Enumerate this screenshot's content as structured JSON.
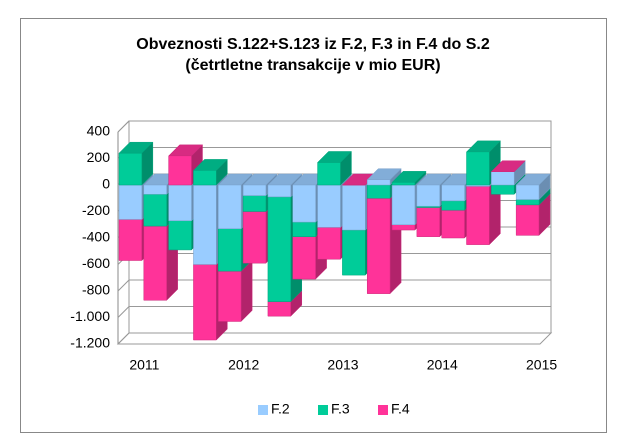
{
  "chart_data": {
    "type": "bar3d_stacked",
    "title": "Obveznosti S.122+S.123 iz F.2, F.3 in F.4 do S.2",
    "subtitle": "(četrtletne transakcije v mio EUR)",
    "categories": [
      "2011",
      null,
      null,
      null,
      "2012",
      null,
      null,
      null,
      "2013",
      null,
      null,
      null,
      "2014",
      null,
      null,
      null,
      "2015"
    ],
    "series": [
      {
        "name": "F.2",
        "color": "#99ccff",
        "values": [
          -260,
          -70,
          -270,
          -600,
          -330,
          -80,
          -90,
          -280,
          -320,
          -340,
          40,
          -300,
          -160,
          -120,
          -10,
          100,
          -110
        ]
      },
      {
        "name": "F.3",
        "color": "#00cc99",
        "values": [
          240,
          -240,
          -220,
          110,
          -320,
          -120,
          -790,
          -110,
          170,
          -340,
          -100,
          20,
          -10,
          -70,
          250,
          -70,
          -40
        ]
      },
      {
        "name": "F.4",
        "color": "#ff3399",
        "values": [
          -310,
          -560,
          220,
          -570,
          -380,
          -390,
          -110,
          -320,
          -240,
          0,
          -720,
          -40,
          -220,
          -210,
          -440,
          0,
          -230
        ]
      }
    ],
    "ylim": [
      -1200,
      400
    ],
    "yticks": [
      {
        "value": -1200,
        "label": "-1.200"
      },
      {
        "value": -1000,
        "label": "-1.000"
      },
      -800,
      -600,
      -400,
      -200,
      0,
      200,
      400
    ],
    "grid": true,
    "legend": "bottom"
  }
}
